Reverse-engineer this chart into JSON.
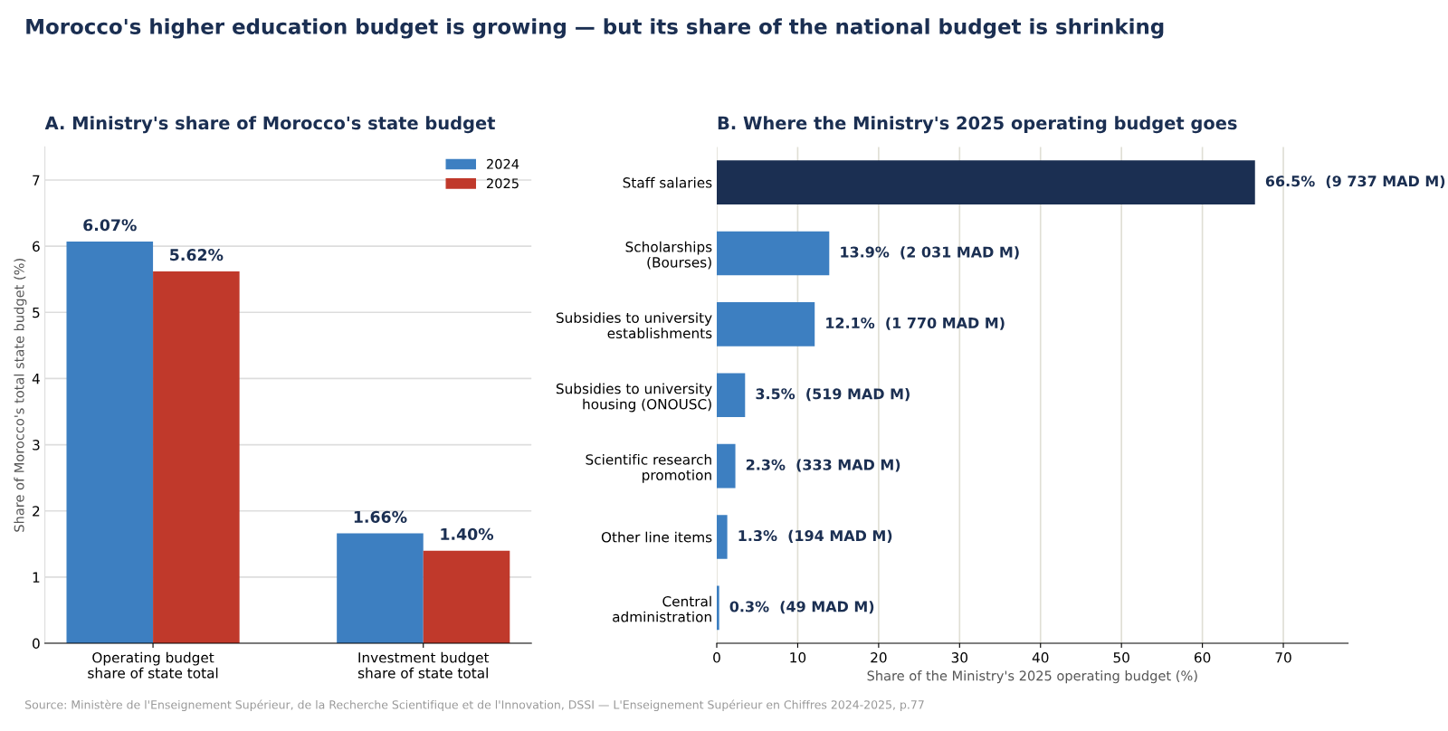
{
  "chart_data": [
    {
      "type": "bar",
      "title": "A. Ministry's share of Morocco's state budget",
      "annotations": [
        "Morocco's higher education budget is growing — but its share of the national budget is shrinking",
        "Source: Ministère de l'Enseignement Supérieur, de la Recherche Scientifique et de l'Innovation, DSSI — L'Enseignement Supérieur en Chiffres 2024-2025, p.77"
      ],
      "categories": [
        "Operating budget\nshare of state total",
        "Investment budget\nshare of state total"
      ],
      "series": [
        {
          "name": "2024",
          "color": "#3d7fc1",
          "values": [
            6.07,
            1.66
          ],
          "value_labels": [
            "6.07%",
            "1.66%"
          ]
        },
        {
          "name": "2025",
          "color": "#c0392b",
          "values": [
            5.62,
            1.4
          ],
          "value_labels": [
            "5.62%",
            "1.40%"
          ]
        }
      ],
      "ylabel": "Share of Morocco's total state budget (%)",
      "ylim": [
        0,
        7.5
      ],
      "yticks": [
        0,
        1,
        2,
        3,
        4,
        5,
        6,
        7
      ],
      "grid": "y",
      "legend": "top right"
    },
    {
      "type": "bar",
      "orientation": "horizontal",
      "title": "B. Where the Ministry's 2025 operating budget goes",
      "categories": [
        "Staff salaries",
        "Scholarships\n(Bourses)",
        "Subsidies to university\nestablishments",
        "Subsidies to university\nhousing (ONOUSC)",
        "Scientific research\npromotion",
        "Other line items",
        "Central\nadministration"
      ],
      "values": [
        66.5,
        13.9,
        12.1,
        3.5,
        2.3,
        1.3,
        0.3
      ],
      "colors": [
        "#1b2f52",
        "#3d7fc1",
        "#3d7fc1",
        "#3d7fc1",
        "#3d7fc1",
        "#3d7fc1",
        "#3d7fc1"
      ],
      "value_labels": [
        "66.5%  (9 737 MAD M)",
        "13.9%  (2 031 MAD M)",
        "12.1%  (1 770 MAD M)",
        "3.5%  (519 MAD M)",
        "2.3%  (333 MAD M)",
        "1.3%  (194 MAD M)",
        "0.3%  (49 MAD M)"
      ],
      "xlabel": "Share of the Ministry's 2025 operating budget (%)",
      "xlim": [
        0,
        78
      ],
      "xticks": [
        0,
        10,
        20,
        30,
        40,
        50,
        60,
        70
      ],
      "grid": "x"
    }
  ]
}
